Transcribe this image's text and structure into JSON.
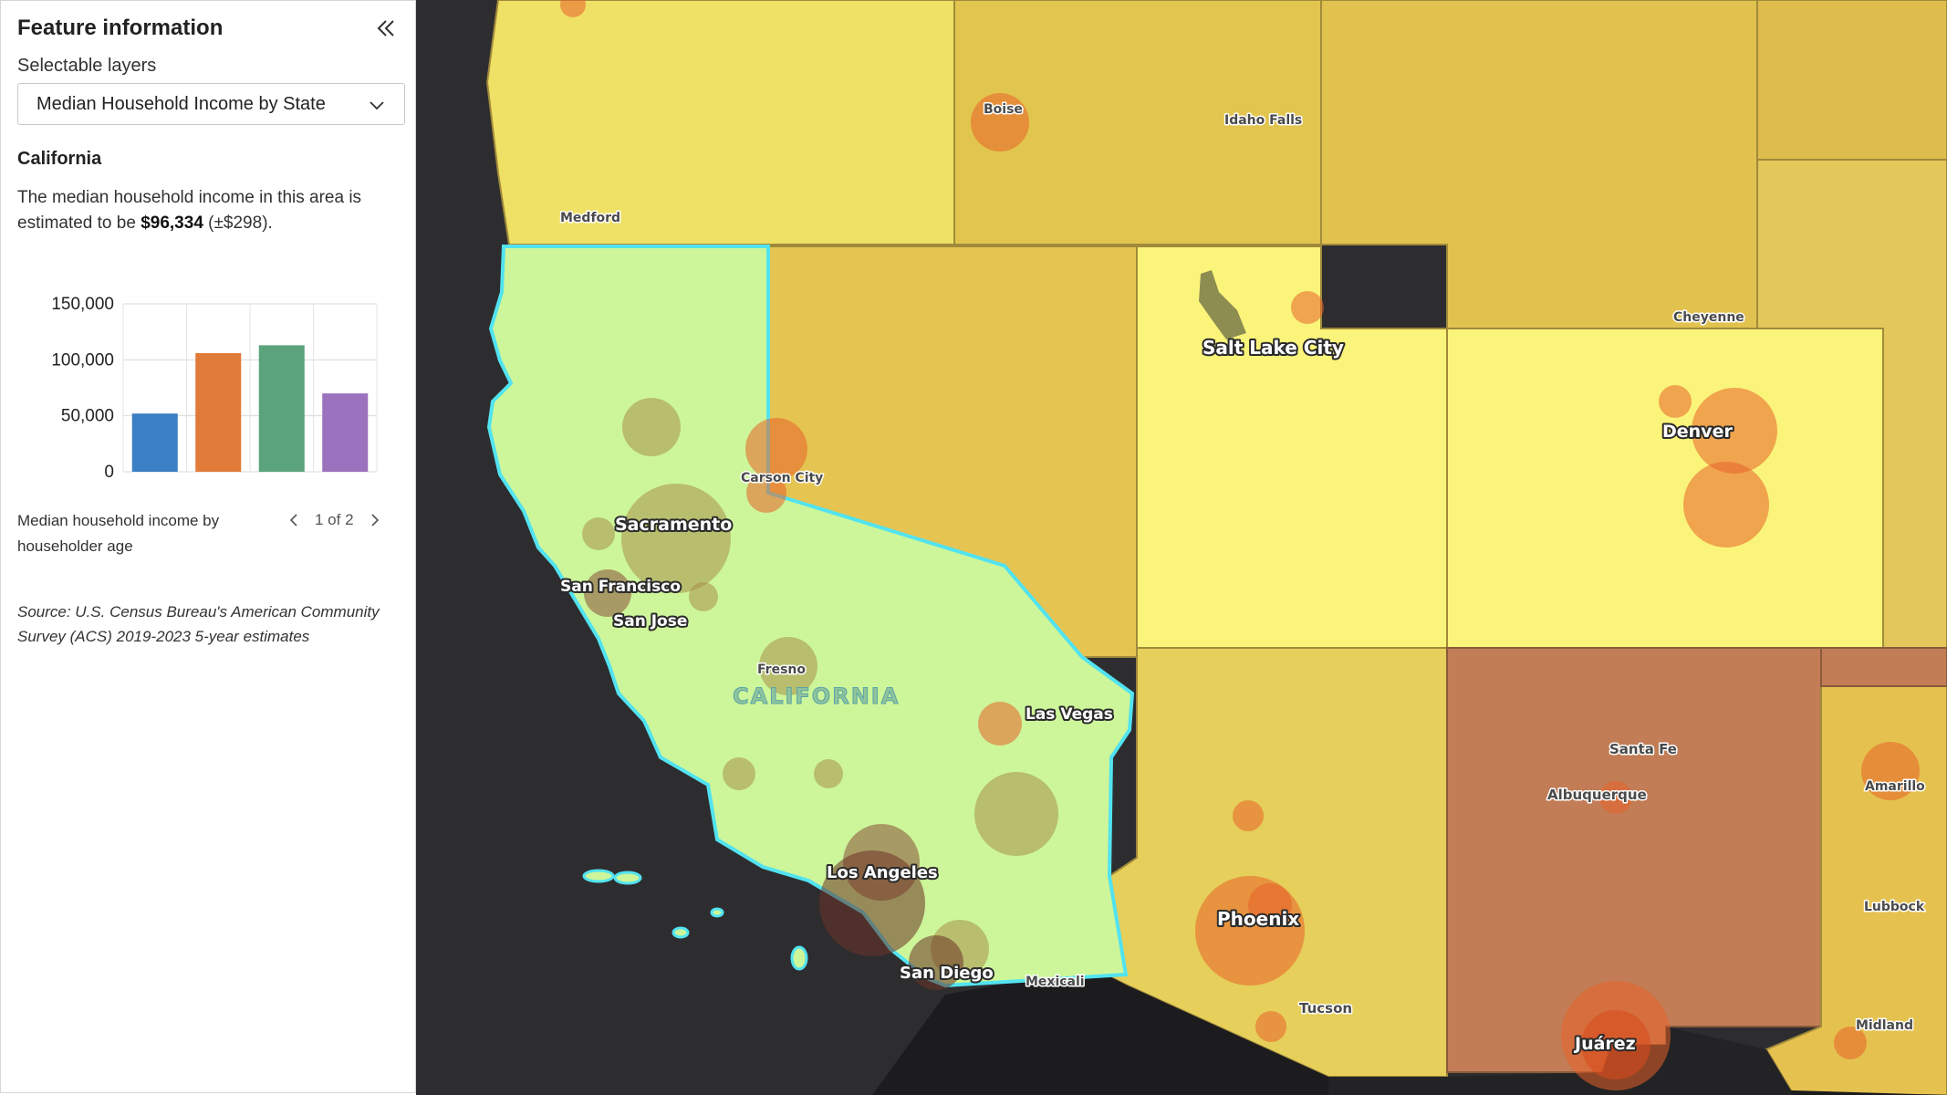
{
  "panel": {
    "title": "Feature information",
    "collapse_icon": "double-chevron-left-icon",
    "selectable_layers_label": "Selectable layers",
    "selected_layer": "Median Household Income by State",
    "feature_name": "California",
    "description_prefix": "The median household income in this area is estimated to be ",
    "income_value": "$96,334",
    "income_moe": " (±$298).",
    "chart_caption": "Median household income by householder age",
    "pager_text": "1 of 2",
    "source_text": "Source: U.S. Census Bureau's American Community Survey (ACS) 2019-2023 5-year estimates"
  },
  "chart_data": {
    "type": "bar",
    "categories": [
      "",
      "",
      "",
      ""
    ],
    "values": [
      52000,
      106000,
      113000,
      70000
    ],
    "colors": [
      "#3b7fc4",
      "#e07b39",
      "#5ba37c",
      "#9a72bd"
    ],
    "yticks": [
      "150,000",
      "100,000",
      "50,000",
      "0"
    ],
    "ylim": [
      0,
      150000
    ],
    "grid": true
  },
  "map": {
    "state_label": "CALIFORNIA",
    "cities": {
      "boise": "Boise",
      "idaho_falls": "Idaho Falls",
      "medford": "Medford",
      "cheyenne": "Cheyenne",
      "salt_lake_city": "Salt Lake City",
      "denver": "Denver",
      "carson_city": "Carson City",
      "sacramento": "Sacramento",
      "san_francisco": "San Francisco",
      "san_jose": "San Jose",
      "fresno": "Fresno",
      "las_vegas": "Las Vegas",
      "santa_fe": "Santa Fe",
      "amarillo": "Amarillo",
      "albuquerque": "Albuquerque",
      "los_angeles": "Los Angeles",
      "phoenix": "Phoenix",
      "lubbock": "Lubbock",
      "san_diego": "San Diego",
      "mexicali": "Mexicali",
      "tucson": "Tucson",
      "midland": "Midland",
      "juarez": "Juárez"
    },
    "colors": {
      "ocean": "#2d2d30",
      "california_fill": "#cdf69a",
      "california_outline": "#52e3f0",
      "high_income": "#fbf47a",
      "mid_income": "#e8cf54",
      "low_income": "#c27d56",
      "bubble": "#e8622a"
    }
  }
}
